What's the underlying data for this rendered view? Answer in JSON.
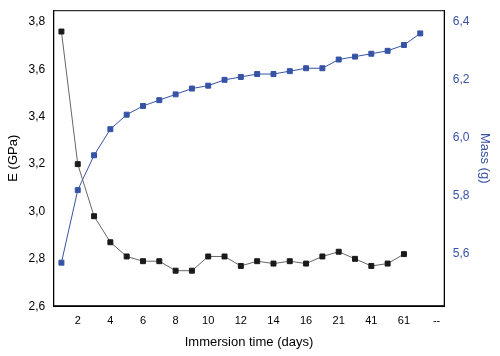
{
  "chart_data": {
    "type": "line",
    "x_label": "Immersion time (days)",
    "y_label": "E (GPa)",
    "y2_label": "Mass (g)",
    "categories": [
      null,
      "2",
      null,
      "4",
      null,
      "6",
      null,
      "8",
      null,
      "10",
      null,
      "12",
      null,
      "14",
      null,
      "16",
      null,
      "21",
      null,
      "41",
      null,
      "61",
      null,
      "--"
    ],
    "series": [
      {
        "name": "E (GPa)",
        "color": "#1a1a1a",
        "marker": "square",
        "axis": "y",
        "values": [
          3.76,
          3.2,
          2.98,
          2.87,
          2.81,
          2.79,
          2.79,
          2.75,
          2.75,
          2.81,
          2.81,
          2.77,
          2.79,
          2.78,
          2.79,
          2.78,
          2.81,
          2.83,
          2.8,
          2.77,
          2.78,
          2.82,
          null,
          null
        ]
      },
      {
        "name": "Mass (g)",
        "color": "#3653a5",
        "marker": "square",
        "axis": "y2",
        "values": [
          5.57,
          5.82,
          5.94,
          6.03,
          6.08,
          6.11,
          6.13,
          6.15,
          6.17,
          6.18,
          6.2,
          6.21,
          6.22,
          6.22,
          6.23,
          6.24,
          6.24,
          6.27,
          6.28,
          6.29,
          6.3,
          6.32,
          6.36,
          null
        ]
      }
    ],
    "ylim": [
      2.6,
      3.85
    ],
    "yticks": [
      {
        "value": 2.6,
        "label": "2,6"
      },
      {
        "value": 2.8,
        "label": "2,8"
      },
      {
        "value": 3.0,
        "label": "3,0"
      },
      {
        "value": 3.2,
        "label": "3,2"
      },
      {
        "value": 3.4,
        "label": "3,4"
      },
      {
        "value": 3.6,
        "label": "3,6"
      },
      {
        "value": 3.8,
        "label": "3,8"
      }
    ],
    "y2lim": [
      5.42,
      6.44
    ],
    "y2ticks": [
      {
        "value": 5.6,
        "label": "5,6"
      },
      {
        "value": 5.8,
        "label": "5,8"
      },
      {
        "value": 6.0,
        "label": "6,0"
      },
      {
        "value": 6.2,
        "label": "6,2"
      },
      {
        "value": 6.4,
        "label": "6,4"
      }
    ],
    "grid": false
  }
}
